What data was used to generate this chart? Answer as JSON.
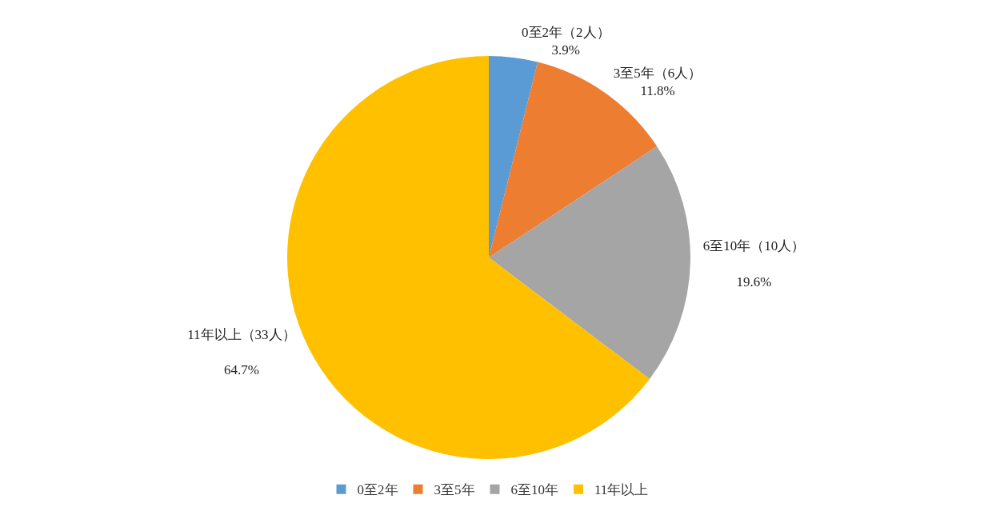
{
  "chart_data": {
    "type": "pie",
    "categories": [
      "0至2年",
      "3至5年",
      "6至10年",
      "11年以上"
    ],
    "values": [
      3.9,
      11.8,
      19.6,
      64.7
    ],
    "value_labels": [
      "0至2年（2人）\n3.9%",
      "3至5年（6人）\n11.8%",
      "6至10年（10人）\n\n19.6%",
      "11年以上（33人）\n\n64.7%"
    ],
    "colors": [
      "#5b9bd5",
      "#ed7d31",
      "#a5a5a5",
      "#ffc000"
    ],
    "legend": "bottom"
  }
}
